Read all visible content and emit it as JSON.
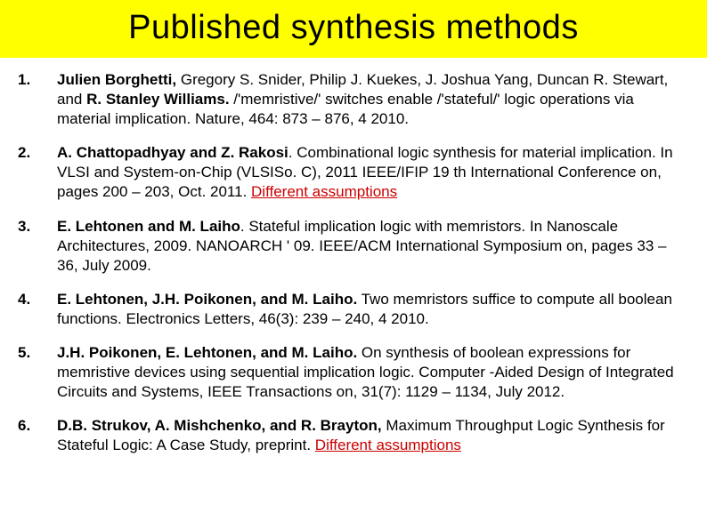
{
  "title": "Published synthesis methods",
  "title_bg": "#ffff00",
  "title_fontsize": 38,
  "body_fontsize": 17,
  "note_color": "#cc0000",
  "items": [
    {
      "num": "1.",
      "authors1": "Julien Borghetti,",
      "mid1": " Gregory S. Snider, Philip J. Kuekes, J. Joshua Yang, Duncan R. Stewart, and ",
      "authors2": "R. Stanley Williams.",
      "rest": " /'memristive/' switches enable /'stateful/' logic operations via material implication. Nature, 464: 873 – 876, 4 2010.",
      "note": ""
    },
    {
      "num": "2.",
      "authors1": "A. Chattopadhyay and Z. Rakosi",
      "mid1": "",
      "authors2": "",
      "rest": ". Combinational logic synthesis for material implication. In VLSI and System-on-Chip (VLSISo. C), 2011 IEEE/IFIP 19 th International Conference on, pages 200 – 203, Oct. 2011. ",
      "note": "Different assumptions"
    },
    {
      "num": "3.",
      "authors1": "E. Lehtonen and M. Laiho",
      "mid1": "",
      "authors2": "",
      "rest": ". Stateful implication logic with memristors. In Nanoscale Architectures, 2009. NANOARCH ' 09. IEEE/ACM International Symposium on, pages 33 – 36, July 2009.",
      "note": ""
    },
    {
      "num": "4.",
      "authors1": "E. Lehtonen, J.H. Poikonen, and M. Laiho.",
      "mid1": "",
      "authors2": "",
      "rest": " Two memristors suffice to compute all boolean functions. Electronics Letters, 46(3): 239 – 240, 4 2010.",
      "note": ""
    },
    {
      "num": "5.",
      "authors1": "J.H. Poikonen, E. Lehtonen, and M. Laiho.",
      "mid1": "",
      "authors2": "",
      "rest": " On synthesis of boolean expressions for memristive devices using sequential implication logic. Computer -Aided Design of Integrated Circuits and Systems, IEEE Transactions on, 31(7): 1129 – 1134, July 2012.",
      "note": ""
    },
    {
      "num": "6.",
      "authors1": "D.B. Strukov, A. Mishchenko, and R. Brayton,",
      "mid1": "",
      "authors2": "",
      "rest": " Maximum Throughput Logic Synthesis for Stateful Logic: A Case Study, preprint. ",
      "note": "Different assumptions"
    }
  ]
}
